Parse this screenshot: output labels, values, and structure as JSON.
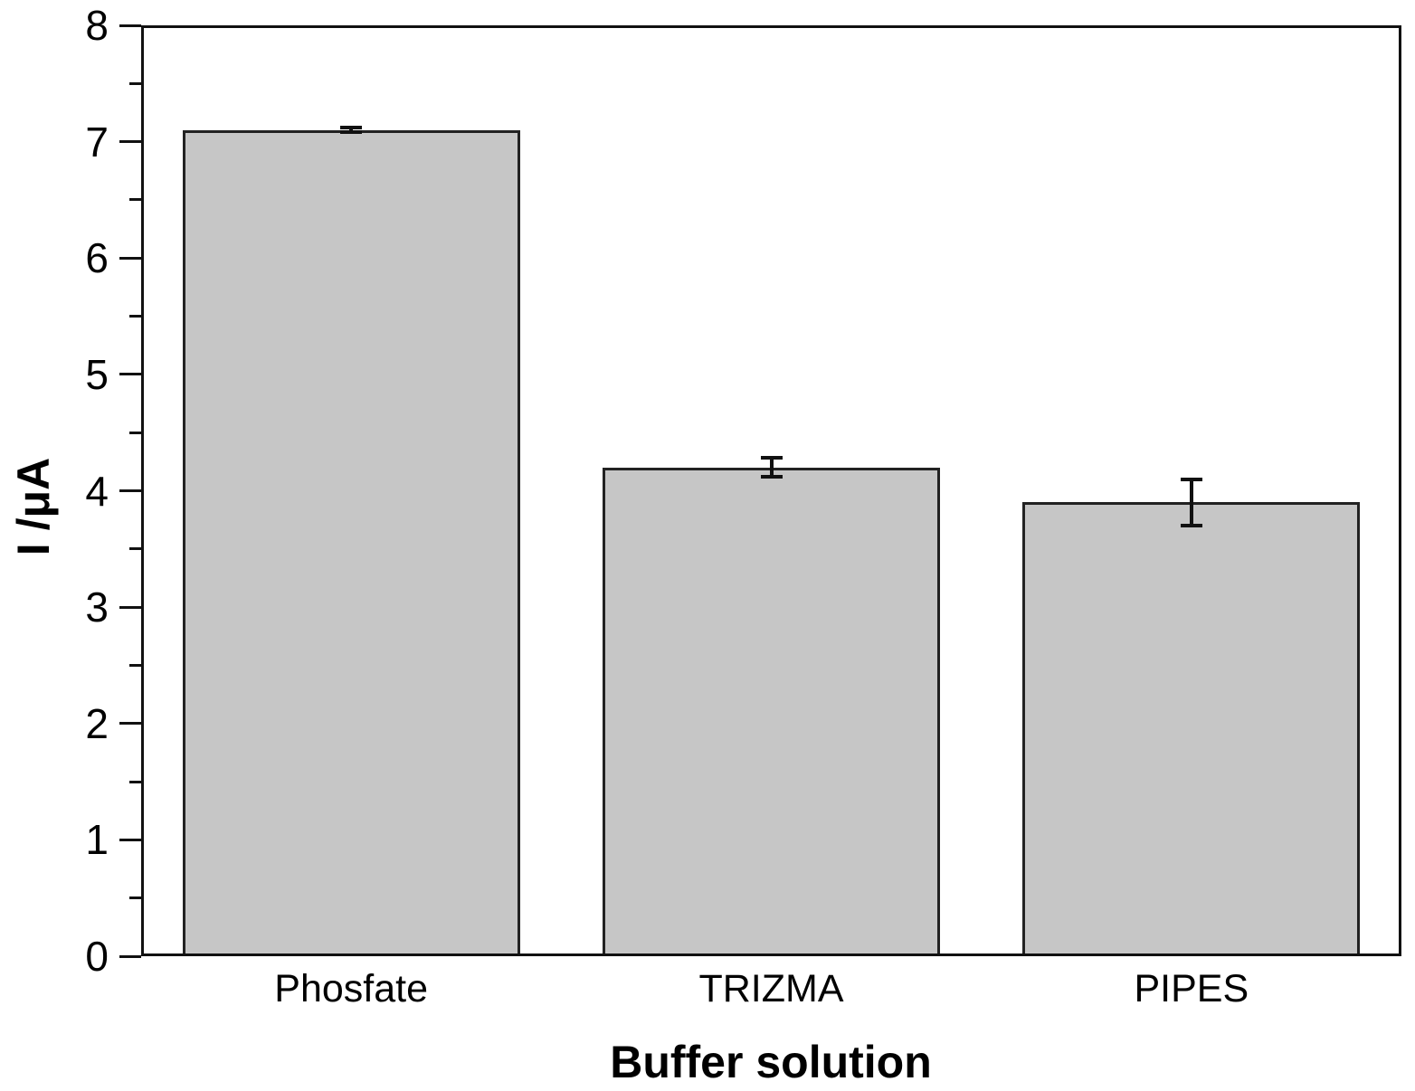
{
  "chart_data": {
    "type": "bar",
    "title": "",
    "xlabel": "Buffer solution",
    "ylabel": "I /μA",
    "categories": [
      "Phosfate",
      "TRIZMA",
      "PIPES"
    ],
    "values": [
      7.1,
      4.2,
      3.9
    ],
    "errors": [
      0.02,
      0.08,
      0.2
    ],
    "ylim": [
      0,
      8
    ],
    "y_major_step": 1,
    "y_minor_step": 0.5,
    "grid": false,
    "legend": false,
    "frame": true,
    "bar_fill_color": "#c6c6c6",
    "bar_border_color": "#222222",
    "axis_color": "#111111",
    "text_color": "#000000",
    "background_color": "#ffffff"
  }
}
